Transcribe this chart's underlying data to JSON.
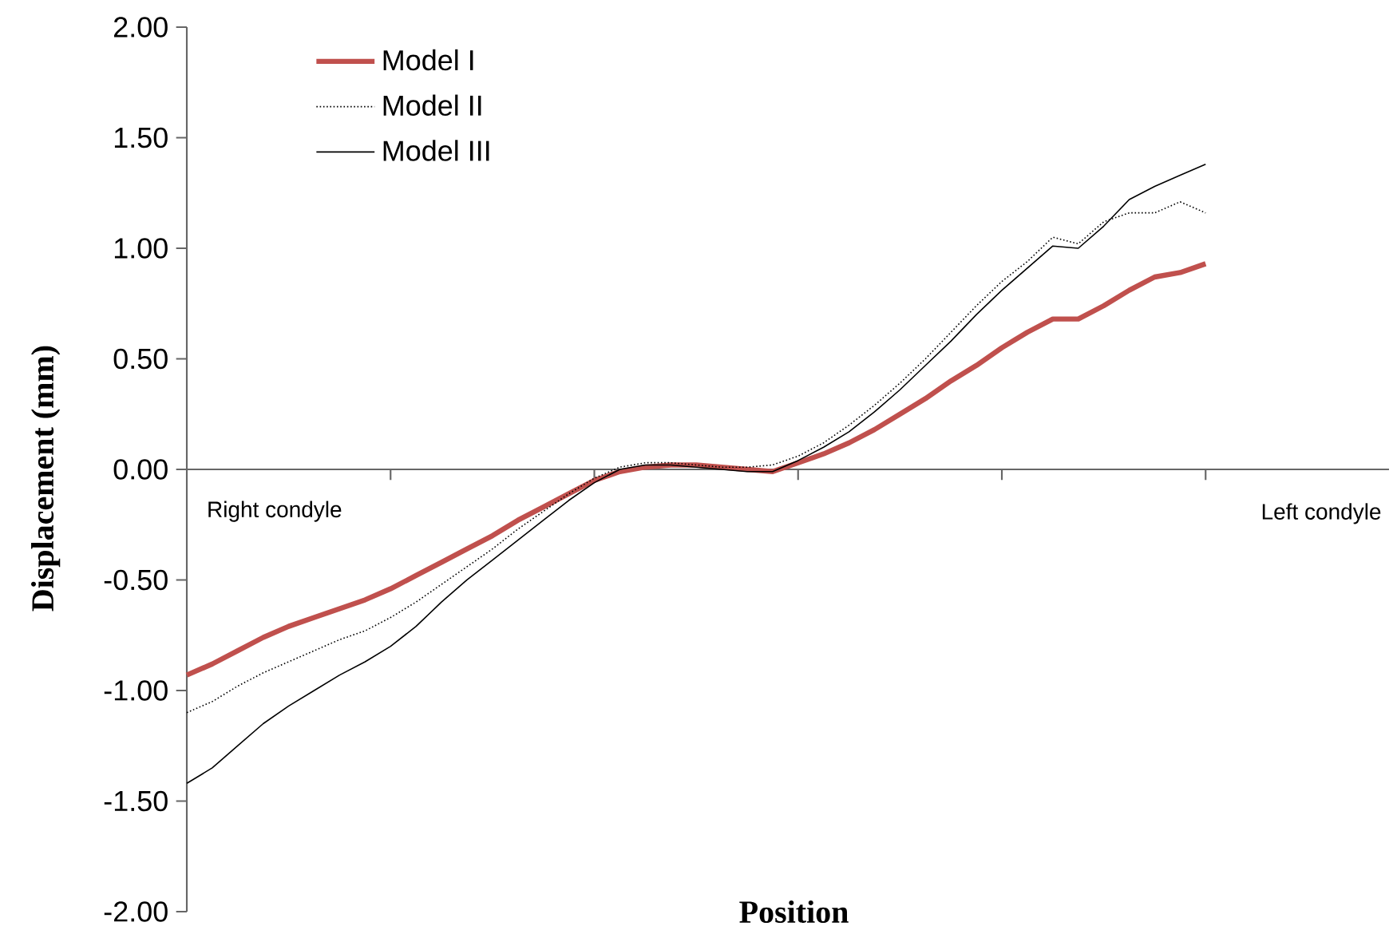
{
  "chart_data": {
    "type": "line",
    "xlabel": "Position",
    "ylabel": "Displacement (mm)",
    "categories": [
      null,
      null,
      null,
      null,
      null,
      null,
      null,
      null,
      null,
      null,
      null,
      null,
      null,
      null,
      null,
      null,
      null,
      null,
      null,
      null,
      null,
      null,
      null,
      null,
      null,
      null,
      null,
      null,
      null,
      null,
      null,
      null,
      null,
      null,
      null,
      null,
      null,
      null,
      null,
      null,
      null
    ],
    "series": [
      {
        "name": "Model I",
        "color": "#c0504d",
        "line_style": "solid",
        "values": [
          -0.93,
          -0.88,
          -0.82,
          -0.76,
          -0.71,
          -0.67,
          -0.63,
          -0.59,
          -0.54,
          -0.48,
          -0.42,
          -0.36,
          -0.3,
          -0.23,
          -0.17,
          -0.11,
          -0.05,
          -0.01,
          0.01,
          0.02,
          0.02,
          0.01,
          0.0,
          -0.01,
          0.03,
          0.07,
          0.12,
          0.18,
          0.25,
          0.32,
          0.4,
          0.47,
          0.55,
          0.62,
          0.68,
          0.68,
          0.74,
          0.81,
          0.87,
          0.89,
          0.93
        ]
      },
      {
        "name": "Model II",
        "color": "#000000",
        "line_style": "dotted",
        "values": [
          -1.1,
          -1.05,
          -0.98,
          -0.92,
          -0.87,
          -0.82,
          -0.77,
          -0.73,
          -0.67,
          -0.6,
          -0.52,
          -0.44,
          -0.36,
          -0.27,
          -0.19,
          -0.11,
          -0.04,
          0.01,
          0.03,
          0.03,
          0.02,
          0.01,
          0.01,
          0.02,
          0.06,
          0.12,
          0.2,
          0.29,
          0.39,
          0.5,
          0.62,
          0.74,
          0.85,
          0.94,
          1.05,
          1.02,
          1.12,
          1.16,
          1.16,
          1.21,
          1.16
        ]
      },
      {
        "name": "Model III",
        "color": "#000000",
        "line_style": "solid",
        "values": [
          -1.42,
          -1.35,
          -1.25,
          -1.15,
          -1.07,
          -1.0,
          -0.93,
          -0.87,
          -0.8,
          -0.71,
          -0.6,
          -0.5,
          -0.41,
          -0.32,
          -0.23,
          -0.14,
          -0.06,
          0.0,
          0.02,
          0.02,
          0.01,
          0.0,
          -0.01,
          -0.01,
          0.04,
          0.1,
          0.17,
          0.26,
          0.36,
          0.47,
          0.58,
          0.7,
          0.81,
          0.91,
          1.01,
          1.0,
          1.1,
          1.22,
          1.28,
          1.33,
          1.38
        ]
      }
    ],
    "ylim": [
      -2,
      2
    ],
    "yticks": [
      {
        "value": -2,
        "label": "-2.00"
      },
      {
        "value": -1.5,
        "label": "-1.50"
      },
      {
        "value": -1,
        "label": "-1.00"
      },
      {
        "value": -0.5,
        "label": "-0.50"
      },
      {
        "value": 0,
        "label": "0.00"
      },
      {
        "value": 0.5,
        "label": "0.50"
      },
      {
        "value": 1,
        "label": "1.00"
      },
      {
        "value": 1.5,
        "label": "1.50"
      },
      {
        "value": 2,
        "label": "2.00"
      }
    ],
    "annotations": [
      "Right condyle",
      "Left condyle"
    ],
    "legend": "top left",
    "marker": "none"
  }
}
